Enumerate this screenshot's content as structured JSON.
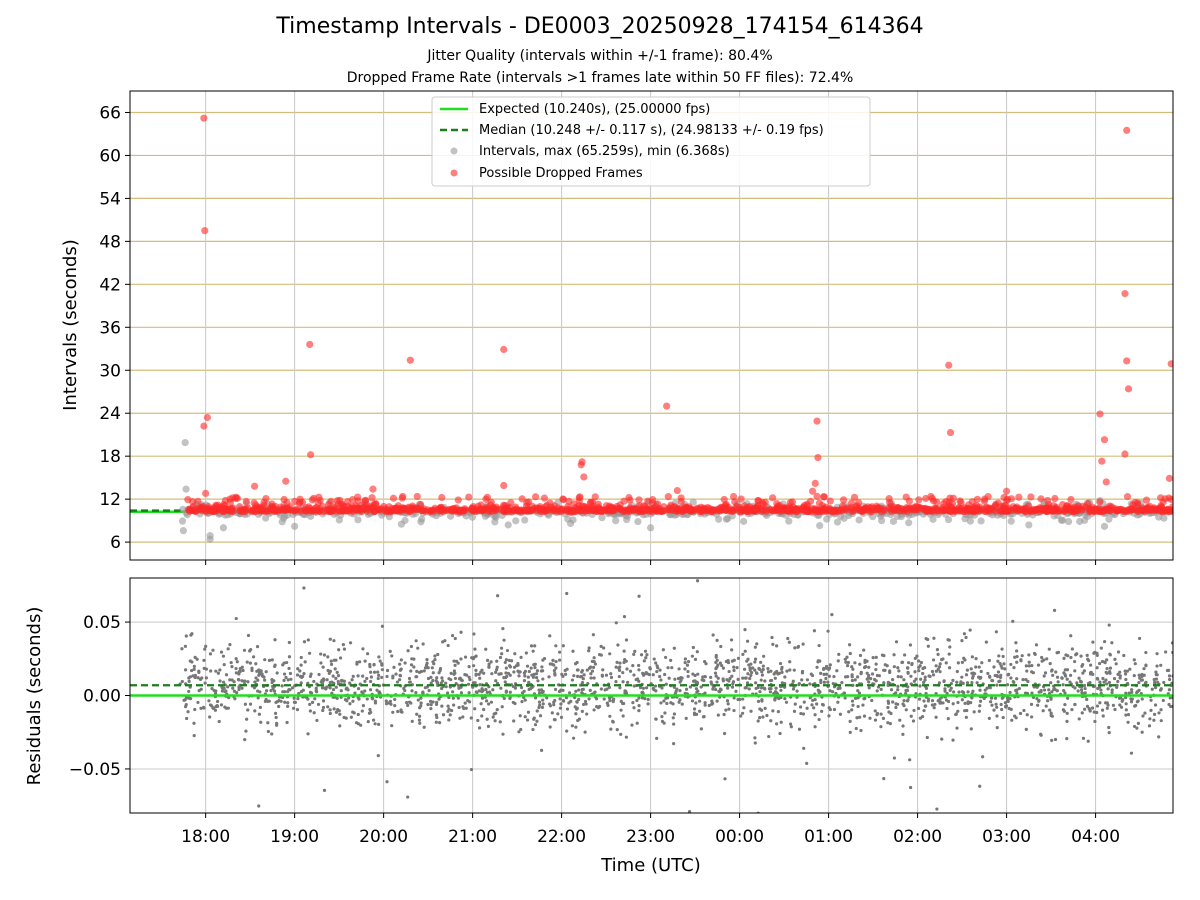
{
  "title": "Timestamp Intervals - DE0003_20250928_174154_614364",
  "subtitle_1": "Jitter Quality (intervals within +/-1 frame): 80.4%",
  "subtitle_2": "Dropped Frame Rate (intervals >1 frames late within 50 FF files): 72.4%",
  "colors": {
    "expected": "#22dd22",
    "median": "#1a7f1a",
    "intervals": "#999999",
    "dropped": "#ff2a2a",
    "hgrid_top": "#d4bd7a",
    "vgrid": "#c8c8c8",
    "residual": "#777777"
  },
  "chart_data": [
    {
      "type": "scatter",
      "name": "intervals-panel",
      "ylabel": "Intervals (seconds)",
      "ylim": [
        3.5,
        69
      ],
      "xlim_hours": [
        17.15,
        28.87
      ],
      "yticks": [
        6,
        12,
        18,
        24,
        30,
        36,
        42,
        48,
        54,
        60,
        66
      ],
      "grid": true,
      "legend_position": "top-center",
      "legend": [
        {
          "label": "Expected (10.240s), (25.00000 fps)",
          "style": "solid-line",
          "color": "#22dd22"
        },
        {
          "label": "Median (10.248 +/- 0.117 s), (24.98133 +/- 0.19 fps)",
          "style": "dashed-line",
          "color": "#1a7f1a"
        },
        {
          "label": "Intervals, max (65.259s), min (6.368s)",
          "style": "dot",
          "color": "#999999"
        },
        {
          "label": "Possible Dropped Frames",
          "style": "dot",
          "color": "#ff2a2a"
        }
      ],
      "expected_value": 10.24,
      "median_value": 10.248,
      "start_hour": 17.7,
      "end_hour": 28.87,
      "dropped_outliers": [
        [
          17.98,
          65.2
        ],
        [
          17.99,
          49.5
        ],
        [
          17.98,
          22.2
        ],
        [
          18.02,
          23.4
        ],
        [
          18.0,
          12.8
        ],
        [
          19.17,
          33.6
        ],
        [
          19.18,
          18.2
        ],
        [
          20.3,
          31.4
        ],
        [
          21.35,
          32.9
        ],
        [
          23.18,
          25.0
        ],
        [
          22.23,
          17.2
        ],
        [
          22.25,
          15.1
        ],
        [
          22.22,
          16.8
        ],
        [
          24.87,
          22.9
        ],
        [
          24.88,
          17.8
        ],
        [
          24.85,
          14.2
        ],
        [
          26.35,
          30.7
        ],
        [
          26.37,
          21.3
        ],
        [
          28.05,
          23.9
        ],
        [
          28.07,
          17.3
        ],
        [
          28.1,
          20.3
        ],
        [
          28.12,
          14.4
        ],
        [
          28.33,
          40.7
        ],
        [
          28.35,
          63.5
        ],
        [
          28.35,
          31.3
        ],
        [
          28.37,
          27.4
        ],
        [
          28.33,
          18.3
        ],
        [
          28.85,
          30.9
        ],
        [
          28.83,
          14.9
        ],
        [
          18.55,
          13.8
        ],
        [
          18.9,
          14.5
        ],
        [
          19.88,
          13.4
        ],
        [
          21.35,
          13.9
        ],
        [
          23.3,
          13.2
        ],
        [
          24.82,
          13.1
        ],
        [
          27.0,
          13.1
        ]
      ],
      "interval_outliers": [
        [
          17.77,
          19.9
        ],
        [
          17.78,
          13.4
        ],
        [
          17.75,
          7.6
        ],
        [
          18.05,
          6.4
        ],
        [
          18.05,
          6.9
        ],
        [
          18.2,
          8.0
        ],
        [
          19.0,
          8.2
        ],
        [
          20.2,
          8.5
        ],
        [
          21.4,
          8.4
        ],
        [
          22.1,
          8.6
        ],
        [
          23.0,
          8.0
        ],
        [
          24.9,
          8.3
        ],
        [
          25.1,
          8.8
        ],
        [
          25.9,
          8.7
        ],
        [
          27.25,
          8.4
        ],
        [
          28.1,
          8.2
        ],
        [
          28.15,
          9.2
        ],
        [
          28.05,
          11.8
        ]
      ],
      "xlabel": ""
    },
    {
      "type": "scatter",
      "name": "residuals-panel",
      "ylabel": "Residuals (seconds)",
      "xlabel": "Time (UTC)",
      "ylim": [
        -0.08,
        0.08
      ],
      "xlim_hours": [
        17.15,
        28.87
      ],
      "yticks": [
        0.05,
        0.0,
        -0.05
      ],
      "ytick_labels": [
        "0.05",
        "0.00",
        "−0.05"
      ],
      "xticks_hours": [
        18,
        19,
        20,
        21,
        22,
        23,
        24,
        25,
        26,
        27,
        28
      ],
      "xtick_labels": [
        "18:00",
        "19:00",
        "20:00",
        "21:00",
        "22:00",
        "23:00",
        "00:00",
        "01:00",
        "02:00",
        "03:00",
        "04:00"
      ],
      "expected_residual": 0.0,
      "median_residual": 0.007,
      "grid": true
    }
  ]
}
